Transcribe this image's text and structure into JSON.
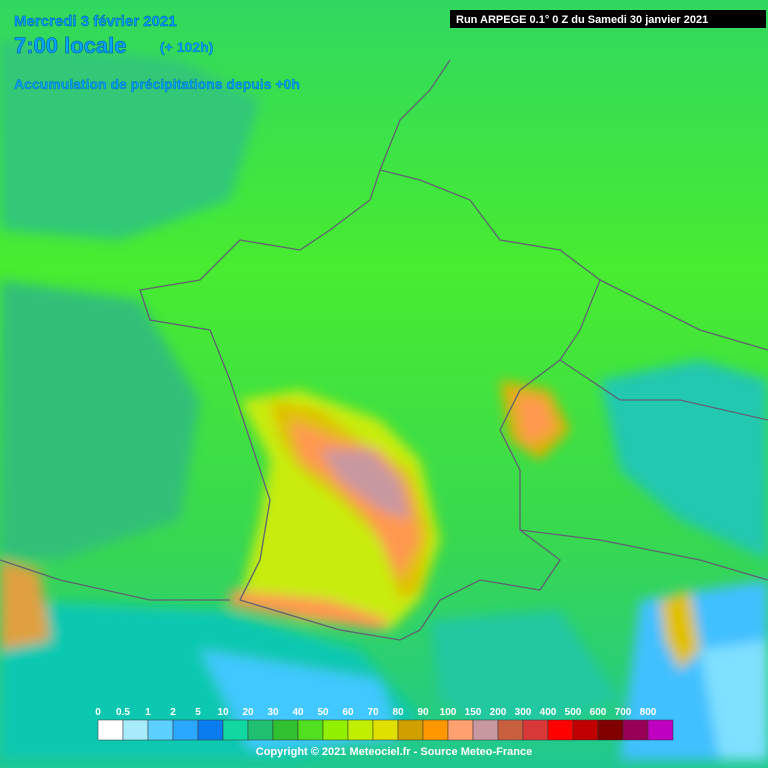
{
  "header": {
    "date": "Mercredi 3 février 2021",
    "time": "7:00 locale",
    "lead": "(+ 102h)",
    "subtitle": "Accumulation de précipitations depuis +0h",
    "run": "Run ARPEGE 0.1° 0 Z du Samedi 30 janvier 2021"
  },
  "legend": {
    "labels": [
      "0",
      "0.5",
      "1",
      "2",
      "5",
      "10",
      "20",
      "30",
      "40",
      "50",
      "60",
      "70",
      "80",
      "90",
      "100",
      "150",
      "200",
      "300",
      "400",
      "500",
      "600",
      "700",
      "800"
    ],
    "colors": [
      "#ffffff",
      "#a8ecfc",
      "#5cd0ff",
      "#2aa8ff",
      "#0a7cf0",
      "#10d8a0",
      "#20c070",
      "#30c030",
      "#50e020",
      "#90f000",
      "#c0f000",
      "#e0e000",
      "#d0a000",
      "#ff9800",
      "#ffa070",
      "#c898a0",
      "#c86040",
      "#d83838",
      "#ff0000",
      "#c00000",
      "#800000",
      "#980058",
      "#c000c0"
    ]
  },
  "footer": {
    "copyright": "Copyright © 2021 Meteociel.fr - Source Meteo-France"
  }
}
